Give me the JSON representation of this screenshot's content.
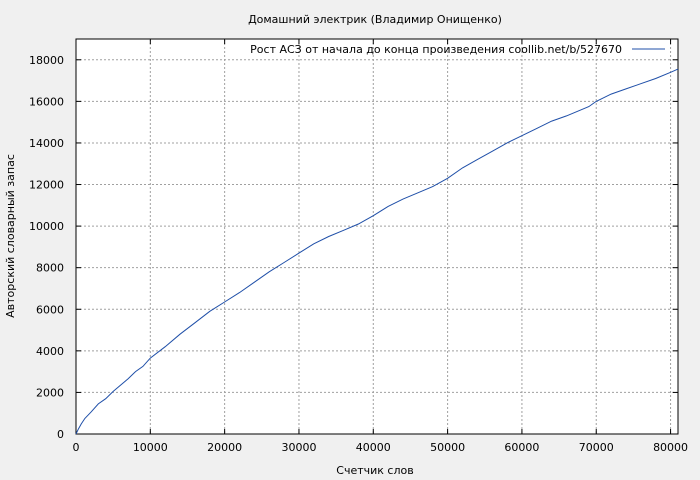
{
  "chart_data": {
    "type": "line",
    "title": "Домашний электрик (Владимир Онищенко)",
    "xlabel": "Счетчик слов",
    "ylabel": "Авторский словарный запас",
    "xlim": [
      0,
      81000
    ],
    "ylim": [
      0,
      19000
    ],
    "xticks": [
      0,
      10000,
      20000,
      30000,
      40000,
      50000,
      60000,
      70000,
      80000
    ],
    "yticks": [
      0,
      2000,
      4000,
      6000,
      8000,
      10000,
      12000,
      14000,
      16000,
      18000
    ],
    "grid": true,
    "legend_position": "top-right",
    "series": [
      {
        "name": "Рост АСЗ от начала до конца произведения  coollib.net/b/527670",
        "color": "#1f4fa8",
        "x": [
          0,
          300,
          700,
          1200,
          2000,
          3000,
          4000,
          5000,
          6000,
          7000,
          8000,
          9000,
          10000,
          12000,
          14000,
          16000,
          18000,
          20000,
          22000,
          24000,
          26000,
          28000,
          30000,
          32000,
          34000,
          36000,
          38000,
          40000,
          42000,
          44000,
          46000,
          48000,
          50000,
          52000,
          54000,
          56000,
          58000,
          60000,
          62000,
          64000,
          66000,
          68000,
          69000,
          70000,
          72000,
          74000,
          76000,
          78000,
          80000,
          81000
        ],
        "y": [
          0,
          220,
          480,
          750,
          1050,
          1450,
          1700,
          2050,
          2350,
          2650,
          3000,
          3250,
          3650,
          4200,
          4800,
          5350,
          5900,
          6350,
          6800,
          7300,
          7800,
          8250,
          8700,
          9150,
          9500,
          9800,
          10100,
          10500,
          10950,
          11300,
          11600,
          11900,
          12300,
          12800,
          13200,
          13600,
          14000,
          14350,
          14700,
          15050,
          15300,
          15600,
          15750,
          16000,
          16350,
          16600,
          16850,
          17100,
          17400,
          17550
        ]
      }
    ]
  }
}
